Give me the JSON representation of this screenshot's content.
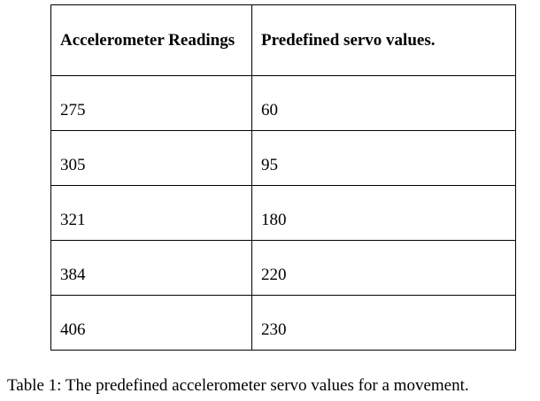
{
  "table": {
    "header": [
      "Accelerometer Readings",
      "Predefined servo values."
    ],
    "rows": [
      [
        275,
        60
      ],
      [
        305,
        95
      ],
      [
        321,
        180
      ],
      [
        384,
        220
      ],
      [
        406,
        230
      ]
    ]
  },
  "caption": "Table 1: The predefined accelerometer servo values for a movement."
}
